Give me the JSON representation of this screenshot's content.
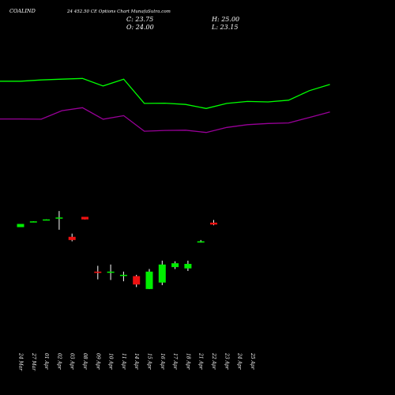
{
  "header": {
    "symbol": "COALIND",
    "contract": "24 452.50 CE Options Chart MunafaSutra.com",
    "close": "C: 23.75",
    "high": "H: 25.00",
    "open": "O: 24.00",
    "low": "L: 23.15"
  },
  "colors": {
    "background": "#000000",
    "up": "#00ee00",
    "down": "#ee1111",
    "wick": "#ffffff",
    "line_top": "#00ff00",
    "line_bottom": "#990099",
    "text": "#ffffff"
  },
  "chart_data": {
    "type": "candlestick",
    "title": "",
    "xlabel": "",
    "ylabel": "",
    "grid": false,
    "categories": [
      "24 Mar",
      "27 Mar",
      "01 Apr",
      "02 Apr",
      "03 Apr",
      "08 Apr",
      "09 Apr",
      "10 Apr",
      "11 Apr",
      "14 Apr",
      "15 Apr",
      "16 Apr",
      "17 Apr",
      "18 Apr",
      "21 Apr",
      "22 Apr",
      "23 Apr",
      "24 Apr",
      "25 Apr"
    ],
    "x_tick_labels": [
      "24 Mar",
      "27 Mar",
      "01 Apr",
      "02 Apr",
      "03 Apr",
      "08 Apr",
      "09 Apr",
      "10 Apr",
      "11 Apr",
      "14 Apr",
      "15 Apr",
      "16 Apr",
      "17 Apr",
      "18 Apr",
      "21 Apr",
      "22 Apr",
      "23 Apr",
      "24 Apr",
      "25 Apr"
    ],
    "ylim": [
      9.0,
      28.0
    ],
    "candles": [
      {
        "date": "24 Mar",
        "open": 23.4,
        "high": 23.9,
        "low": 23.4,
        "close": 23.9
      },
      {
        "date": "27 Mar",
        "open": 24.2,
        "high": 24.3,
        "low": 24.2,
        "close": 24.3
      },
      {
        "date": "01 Apr",
        "open": 24.5,
        "high": 24.6,
        "low": 24.5,
        "close": 24.6
      },
      {
        "date": "02 Apr",
        "open": 24.8,
        "high": 25.9,
        "low": 23.0,
        "close": 24.9
      },
      {
        "date": "03 Apr",
        "open": 21.9,
        "high": 22.4,
        "low": 21.2,
        "close": 21.4
      },
      {
        "date": "08 Apr",
        "open": 25.0,
        "high": 25.0,
        "low": 24.6,
        "close": 24.6
      },
      {
        "date": "09 Apr",
        "open": 16.5,
        "high": 17.4,
        "low": 15.3,
        "close": 16.3
      },
      {
        "date": "10 Apr",
        "open": 16.4,
        "high": 17.6,
        "low": 15.2,
        "close": 16.5
      },
      {
        "date": "11 Apr",
        "open": 15.9,
        "high": 16.5,
        "low": 15.0,
        "close": 16.0
      },
      {
        "date": "14 Apr",
        "open": 15.8,
        "high": 16.0,
        "low": 14.1,
        "close": 14.5
      },
      {
        "date": "15 Apr",
        "open": 13.8,
        "high": 16.9,
        "low": 13.8,
        "close": 16.5
      },
      {
        "date": "16 Apr",
        "open": 14.8,
        "high": 18.2,
        "low": 14.4,
        "close": 17.6
      },
      {
        "date": "17 Apr",
        "open": 17.2,
        "high": 18.1,
        "low": 16.9,
        "close": 17.8
      },
      {
        "date": "18 Apr",
        "open": 17.0,
        "high": 18.2,
        "low": 16.6,
        "close": 17.7
      },
      {
        "date": "21 Apr",
        "open": 21.2,
        "high": 21.4,
        "low": 21.0,
        "close": 21.2
      },
      {
        "date": "22 Apr",
        "open": 24.1,
        "high": 24.5,
        "low": 23.7,
        "close": 23.8
      },
      {
        "date": "23 Apr",
        "open": null,
        "high": null,
        "low": null,
        "close": null
      },
      {
        "date": "24 Apr",
        "open": null,
        "high": null,
        "low": null,
        "close": null
      },
      {
        "date": "25 Apr",
        "open": null,
        "high": null,
        "low": null,
        "close": null
      }
    ],
    "line_series": [
      {
        "color": "#00ff00",
        "values": [
          46.5,
          46.5,
          47.0,
          47.3,
          47.6,
          44.6,
          47.3,
          37.6,
          37.7,
          37.2,
          35.6,
          37.6,
          38.4,
          38.2,
          38.9,
          42.7,
          45.2
        ]
      },
      {
        "color": "#990099",
        "values": [
          31.4,
          31.4,
          31.3,
          34.7,
          35.9,
          31.3,
          32.7,
          26.5,
          26.8,
          26.9,
          26.0,
          28.0,
          29.1,
          29.6,
          29.8,
          32.0,
          34.2
        ]
      }
    ],
    "line_ylim": [
      0,
      60
    ]
  }
}
